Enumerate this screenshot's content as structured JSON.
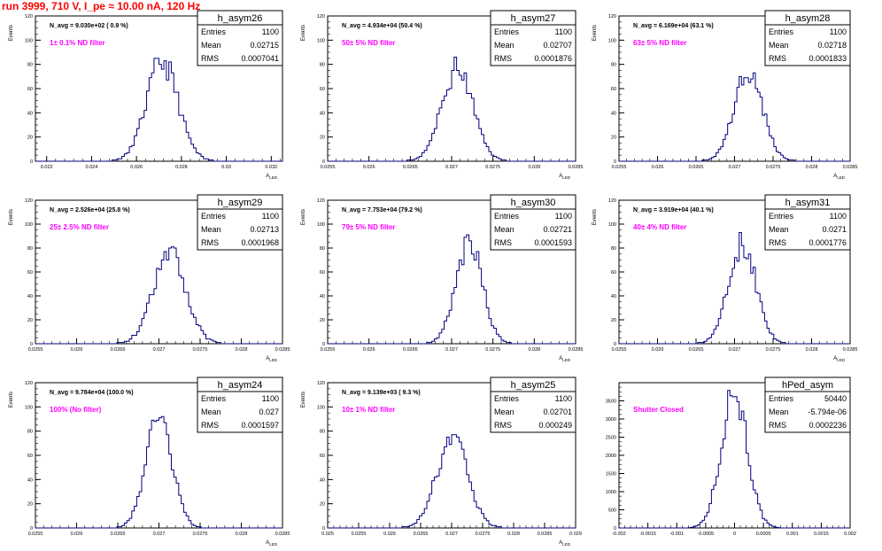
{
  "canvas": {
    "title": "run 3999,   710 V, I_pe ≈ 10.00 nA, 120 Hz",
    "stats_labels": {
      "entries": "Entries",
      "mean": "Mean",
      "rms": "RMS"
    }
  },
  "chart_data": [
    {
      "type": "histogram",
      "name": "h_asym26",
      "ylabel": "Events",
      "xlabel": "A_LED",
      "xlim": [
        0.0215,
        0.0325
      ],
      "ylim": [
        0,
        120
      ],
      "xticks": [
        "0.022",
        "0.024",
        "0.026",
        "0.028",
        "0.03",
        "0.032"
      ],
      "xtick_values": [
        0.022,
        0.024,
        0.026,
        0.028,
        0.03,
        0.032
      ],
      "yticks": [
        0,
        20,
        40,
        60,
        80,
        100,
        120
      ],
      "navg": "N_avg = 9.030e+02 ( 0.9 %)",
      "filter": "1± 0.1% ND filter",
      "stats": {
        "entries": "1100",
        "mean": "0.02715",
        "rms": "0.0007041"
      },
      "peak": 82,
      "mean": 0.02715,
      "rms": 0.0007041,
      "seed": 11
    },
    {
      "type": "histogram",
      "name": "h_asym27",
      "ylabel": "Events",
      "xlabel": "A_LED",
      "xlim": [
        0.0255,
        0.0285
      ],
      "ylim": [
        0,
        120
      ],
      "xticks": [
        "0.0255",
        "0.026",
        "0.0265",
        "0.027",
        "0.0275",
        "0.028",
        "0.0285"
      ],
      "xtick_values": [
        0.0255,
        0.026,
        0.0265,
        0.027,
        0.0275,
        0.028,
        0.0285
      ],
      "yticks": [
        0,
        20,
        40,
        60,
        80,
        100,
        120
      ],
      "navg": "N_avg = 4.934e+04 (50.4 %)",
      "filter": "50± 5% ND filter",
      "stats": {
        "entries": "1100",
        "mean": "0.02707",
        "rms": "0.0001876"
      },
      "peak": 76,
      "mean": 0.02707,
      "rms": 0.0001876,
      "seed": 23
    },
    {
      "type": "histogram",
      "name": "h_asym28",
      "ylabel": "Events",
      "xlabel": "A_LED",
      "xlim": [
        0.0255,
        0.0285
      ],
      "ylim": [
        0,
        120
      ],
      "xticks": [
        "0.0255",
        "0.026",
        "0.0265",
        "0.027",
        "0.0275",
        "0.028",
        "0.0285"
      ],
      "xtick_values": [
        0.0255,
        0.026,
        0.0265,
        0.027,
        0.0275,
        0.028,
        0.0285
      ],
      "yticks": [
        0,
        20,
        40,
        60,
        80,
        100,
        120
      ],
      "navg": "N_avg = 6.169e+04 (63.1 %)",
      "filter": "63± 5% ND filter",
      "stats": {
        "entries": "1100",
        "mean": "0.02718",
        "rms": "0.0001833"
      },
      "peak": 76,
      "mean": 0.02718,
      "rms": 0.0001833,
      "seed": 37
    },
    {
      "type": "histogram",
      "name": "h_asym29",
      "ylabel": "Events",
      "xlabel": "A_LED",
      "xlim": [
        0.0255,
        0.0285
      ],
      "ylim": [
        0,
        120
      ],
      "xticks": [
        "0.0255",
        "0.026",
        "0.0265",
        "0.027",
        "0.0275",
        "0.028",
        "0.0285"
      ],
      "xtick_values": [
        0.0255,
        0.026,
        0.0265,
        0.027,
        0.0275,
        0.028,
        0.0285
      ],
      "yticks": [
        0,
        20,
        40,
        60,
        80,
        100,
        120
      ],
      "navg": "N_avg = 2.526e+04 (25.8 %)",
      "filter": "25± 2.5% ND filter",
      "stats": {
        "entries": "1100",
        "mean": "0.02713",
        "rms": "0.0001968"
      },
      "peak": 75,
      "mean": 0.02713,
      "rms": 0.0001968,
      "seed": 41
    },
    {
      "type": "histogram",
      "name": "h_asym30",
      "ylabel": "Events",
      "xlabel": "A_LED",
      "xlim": [
        0.0255,
        0.0285
      ],
      "ylim": [
        0,
        120
      ],
      "xticks": [
        "0.0255",
        "0.026",
        "0.0265",
        "0.027",
        "0.0275",
        "0.028",
        "0.0285"
      ],
      "xtick_values": [
        0.0255,
        0.026,
        0.0265,
        0.027,
        0.0275,
        0.028,
        0.0285
      ],
      "yticks": [
        0,
        20,
        40,
        60,
        80,
        100,
        120
      ],
      "navg": "N_avg = 7.753e+04 (79.2 %)",
      "filter": "79± 5% ND filter",
      "stats": {
        "entries": "1100",
        "mean": "0.02721",
        "rms": "0.0001593"
      },
      "peak": 85,
      "mean": 0.02721,
      "rms": 0.0001593,
      "seed": 53
    },
    {
      "type": "histogram",
      "name": "h_asym31",
      "ylabel": "Events",
      "xlabel": "A_LED",
      "xlim": [
        0.0255,
        0.0285
      ],
      "ylim": [
        0,
        120
      ],
      "xticks": [
        "0.0255",
        "0.026",
        "0.0265",
        "0.027",
        "0.0275",
        "0.028",
        "0.0285"
      ],
      "xtick_values": [
        0.0255,
        0.026,
        0.0265,
        0.027,
        0.0275,
        0.028,
        0.0285
      ],
      "yticks": [
        0,
        20,
        40,
        60,
        80,
        100,
        120
      ],
      "navg": "N_avg = 3.919e+04 (40.1 %)",
      "filter": "40± 4% ND filter",
      "stats": {
        "entries": "1100",
        "mean": "0.0271",
        "rms": "0.0001776"
      },
      "peak": 84,
      "mean": 0.0271,
      "rms": 0.0001776,
      "seed": 67
    },
    {
      "type": "histogram",
      "name": "h_asym24",
      "ylabel": "Events",
      "xlabel": "A_LED",
      "xlim": [
        0.0255,
        0.0285
      ],
      "ylim": [
        0,
        120
      ],
      "xticks": [
        "0.0255",
        "0.026",
        "0.0265",
        "0.027",
        "0.0275",
        "0.028",
        "0.0285"
      ],
      "xtick_values": [
        0.0255,
        0.026,
        0.0265,
        0.027,
        0.0275,
        0.028,
        0.0285
      ],
      "yticks": [
        0,
        20,
        40,
        60,
        80,
        100,
        120
      ],
      "navg": "N_avg = 9.784e+04 (100.0 %)",
      "filter": "100% (No filter)",
      "stats": {
        "entries": "1100",
        "mean": "0.027",
        "rms": "0.0001597"
      },
      "peak": 90,
      "mean": 0.027,
      "rms": 0.0001597,
      "seed": 79
    },
    {
      "type": "histogram",
      "name": "h_asym25",
      "ylabel": "Events",
      "xlabel": "A_LED",
      "xlim": [
        0.025,
        0.029
      ],
      "ylim": [
        0,
        120
      ],
      "xticks": [
        "0.025",
        "0.0255",
        "0.026",
        "0.0265",
        "0.027",
        "0.0275",
        "0.028",
        "0.0285",
        "0.029"
      ],
      "xtick_values": [
        0.025,
        0.0255,
        0.026,
        0.0265,
        0.027,
        0.0275,
        0.028,
        0.0285,
        0.029
      ],
      "yticks": [
        0,
        20,
        40,
        60,
        80,
        100,
        120
      ],
      "navg": "N_avg = 9.139e+03 ( 9.3 %)",
      "filter": "10± 1% ND filter",
      "stats": {
        "entries": "1100",
        "mean": "0.02701",
        "rms": "0.000249"
      },
      "peak": 75,
      "mean": 0.02701,
      "rms": 0.000249,
      "seed": 83
    },
    {
      "type": "histogram",
      "name": "hPed_asym",
      "ylabel": "",
      "xlabel": "",
      "xlim": [
        -0.002,
        0.002
      ],
      "ylim": [
        0,
        4000
      ],
      "xticks": [
        "-0.002",
        "-0.0015",
        "-0.001",
        "-0.0005",
        "0",
        "0.0005",
        "0.001",
        "0.0015",
        "0.002"
      ],
      "xtick_values": [
        -0.002,
        -0.0015,
        -0.001,
        -0.0005,
        0,
        0.0005,
        0.001,
        0.0015,
        0.002
      ],
      "yticks": [
        0,
        500,
        1000,
        1500,
        2000,
        2500,
        3000,
        3500
      ],
      "navg": "",
      "filter": "Shutter Closed",
      "stats": {
        "entries": "50440",
        "mean": "-5.794e-06",
        "rms": "0.0002236"
      },
      "peak": 3800,
      "mean": -5.8e-06,
      "rms": 0.0002236,
      "seed": 97
    }
  ]
}
